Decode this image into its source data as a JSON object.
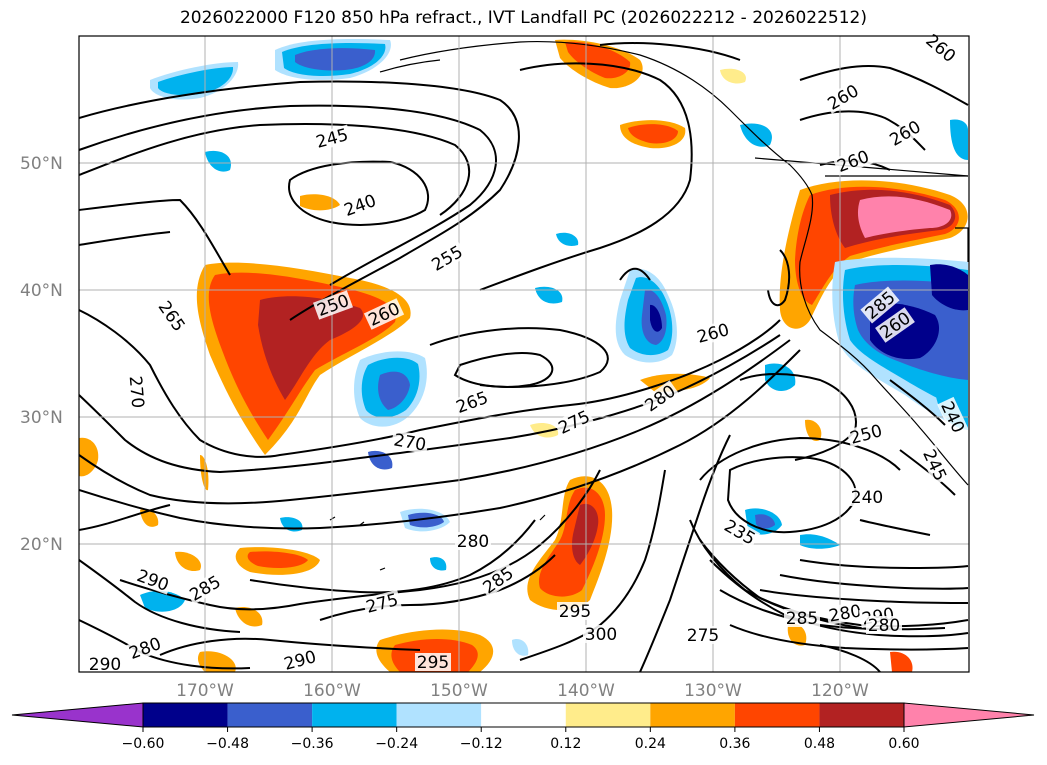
{
  "title": "2026022000 F120 850 hPa refract., IVT Landfall PC (2026022212 - 2026022512)",
  "lat_labels": [
    "50°N",
    "40°N",
    "30°N",
    "20°N"
  ],
  "lon_labels": [
    "170°W",
    "160°W",
    "150°W",
    "140°W",
    "130°W",
    "120°W"
  ],
  "contour_labels": [
    "245",
    "240",
    "255",
    "250",
    "260",
    "265",
    "270",
    "265",
    "270",
    "275",
    "280",
    "260",
    "260",
    "260",
    "260",
    "250",
    "240",
    "235",
    "245",
    "240",
    "280",
    "285",
    "290",
    "280",
    "275",
    "285",
    "295",
    "300",
    "275",
    "285",
    "280",
    "290",
    "290",
    "295",
    "290",
    "280",
    "260",
    "285",
    "260"
  ],
  "colorbar": {
    "ticks": [
      "−0.60",
      "−0.48",
      "−0.36",
      "−0.24",
      "−0.12",
      "0.12",
      "0.24",
      "0.36",
      "0.48",
      "0.60"
    ],
    "colors": [
      "#9933cc",
      "#00008b",
      "#3a5fcd",
      "#00b2ee",
      "#b0e2ff",
      "#ffffff",
      "#ffec8b",
      "#ffa500",
      "#ff4500",
      "#b22222",
      "#ff82ab"
    ]
  }
}
